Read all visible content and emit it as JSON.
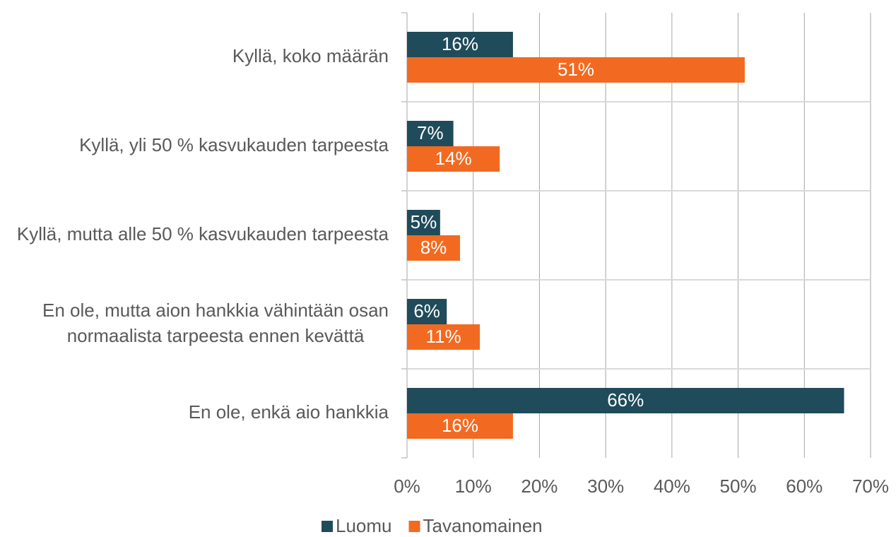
{
  "chart_data": {
    "type": "hbar",
    "categories": [
      "Kyllä, koko määrän",
      "Kyllä, yli 50 % kasvukauden tarpeesta",
      "Kyllä, mutta alle 50 % kasvukauden tarpeesta",
      "En ole, mutta aion hankkia vähintään osan normaalista tarpeesta ennen kevättä",
      "En ole, enkä aio hankkia"
    ],
    "series": [
      {
        "name": "Luomu",
        "color": "#1f4b5a",
        "values": [
          16,
          7,
          5,
          6,
          66
        ],
        "value_labels": [
          "16%",
          "7%",
          "5%",
          "6%",
          "66%"
        ]
      },
      {
        "name": "Tavanomainen",
        "color": "#f26a21",
        "values": [
          51,
          14,
          8,
          11,
          16
        ],
        "value_labels": [
          "51%",
          "14%",
          "8%",
          "11%",
          "16%"
        ]
      }
    ],
    "xlim": [
      0,
      70
    ],
    "xticks": [
      {
        "value": 0,
        "label": "0%"
      },
      {
        "value": 10,
        "label": "10%"
      },
      {
        "value": 20,
        "label": "20%"
      },
      {
        "value": 30,
        "label": "30%"
      },
      {
        "value": 40,
        "label": "40%"
      },
      {
        "value": 50,
        "label": "50%"
      },
      {
        "value": 60,
        "label": "60%"
      },
      {
        "value": 70,
        "label": "70%"
      }
    ],
    "grid": true,
    "legend": "bottom"
  }
}
